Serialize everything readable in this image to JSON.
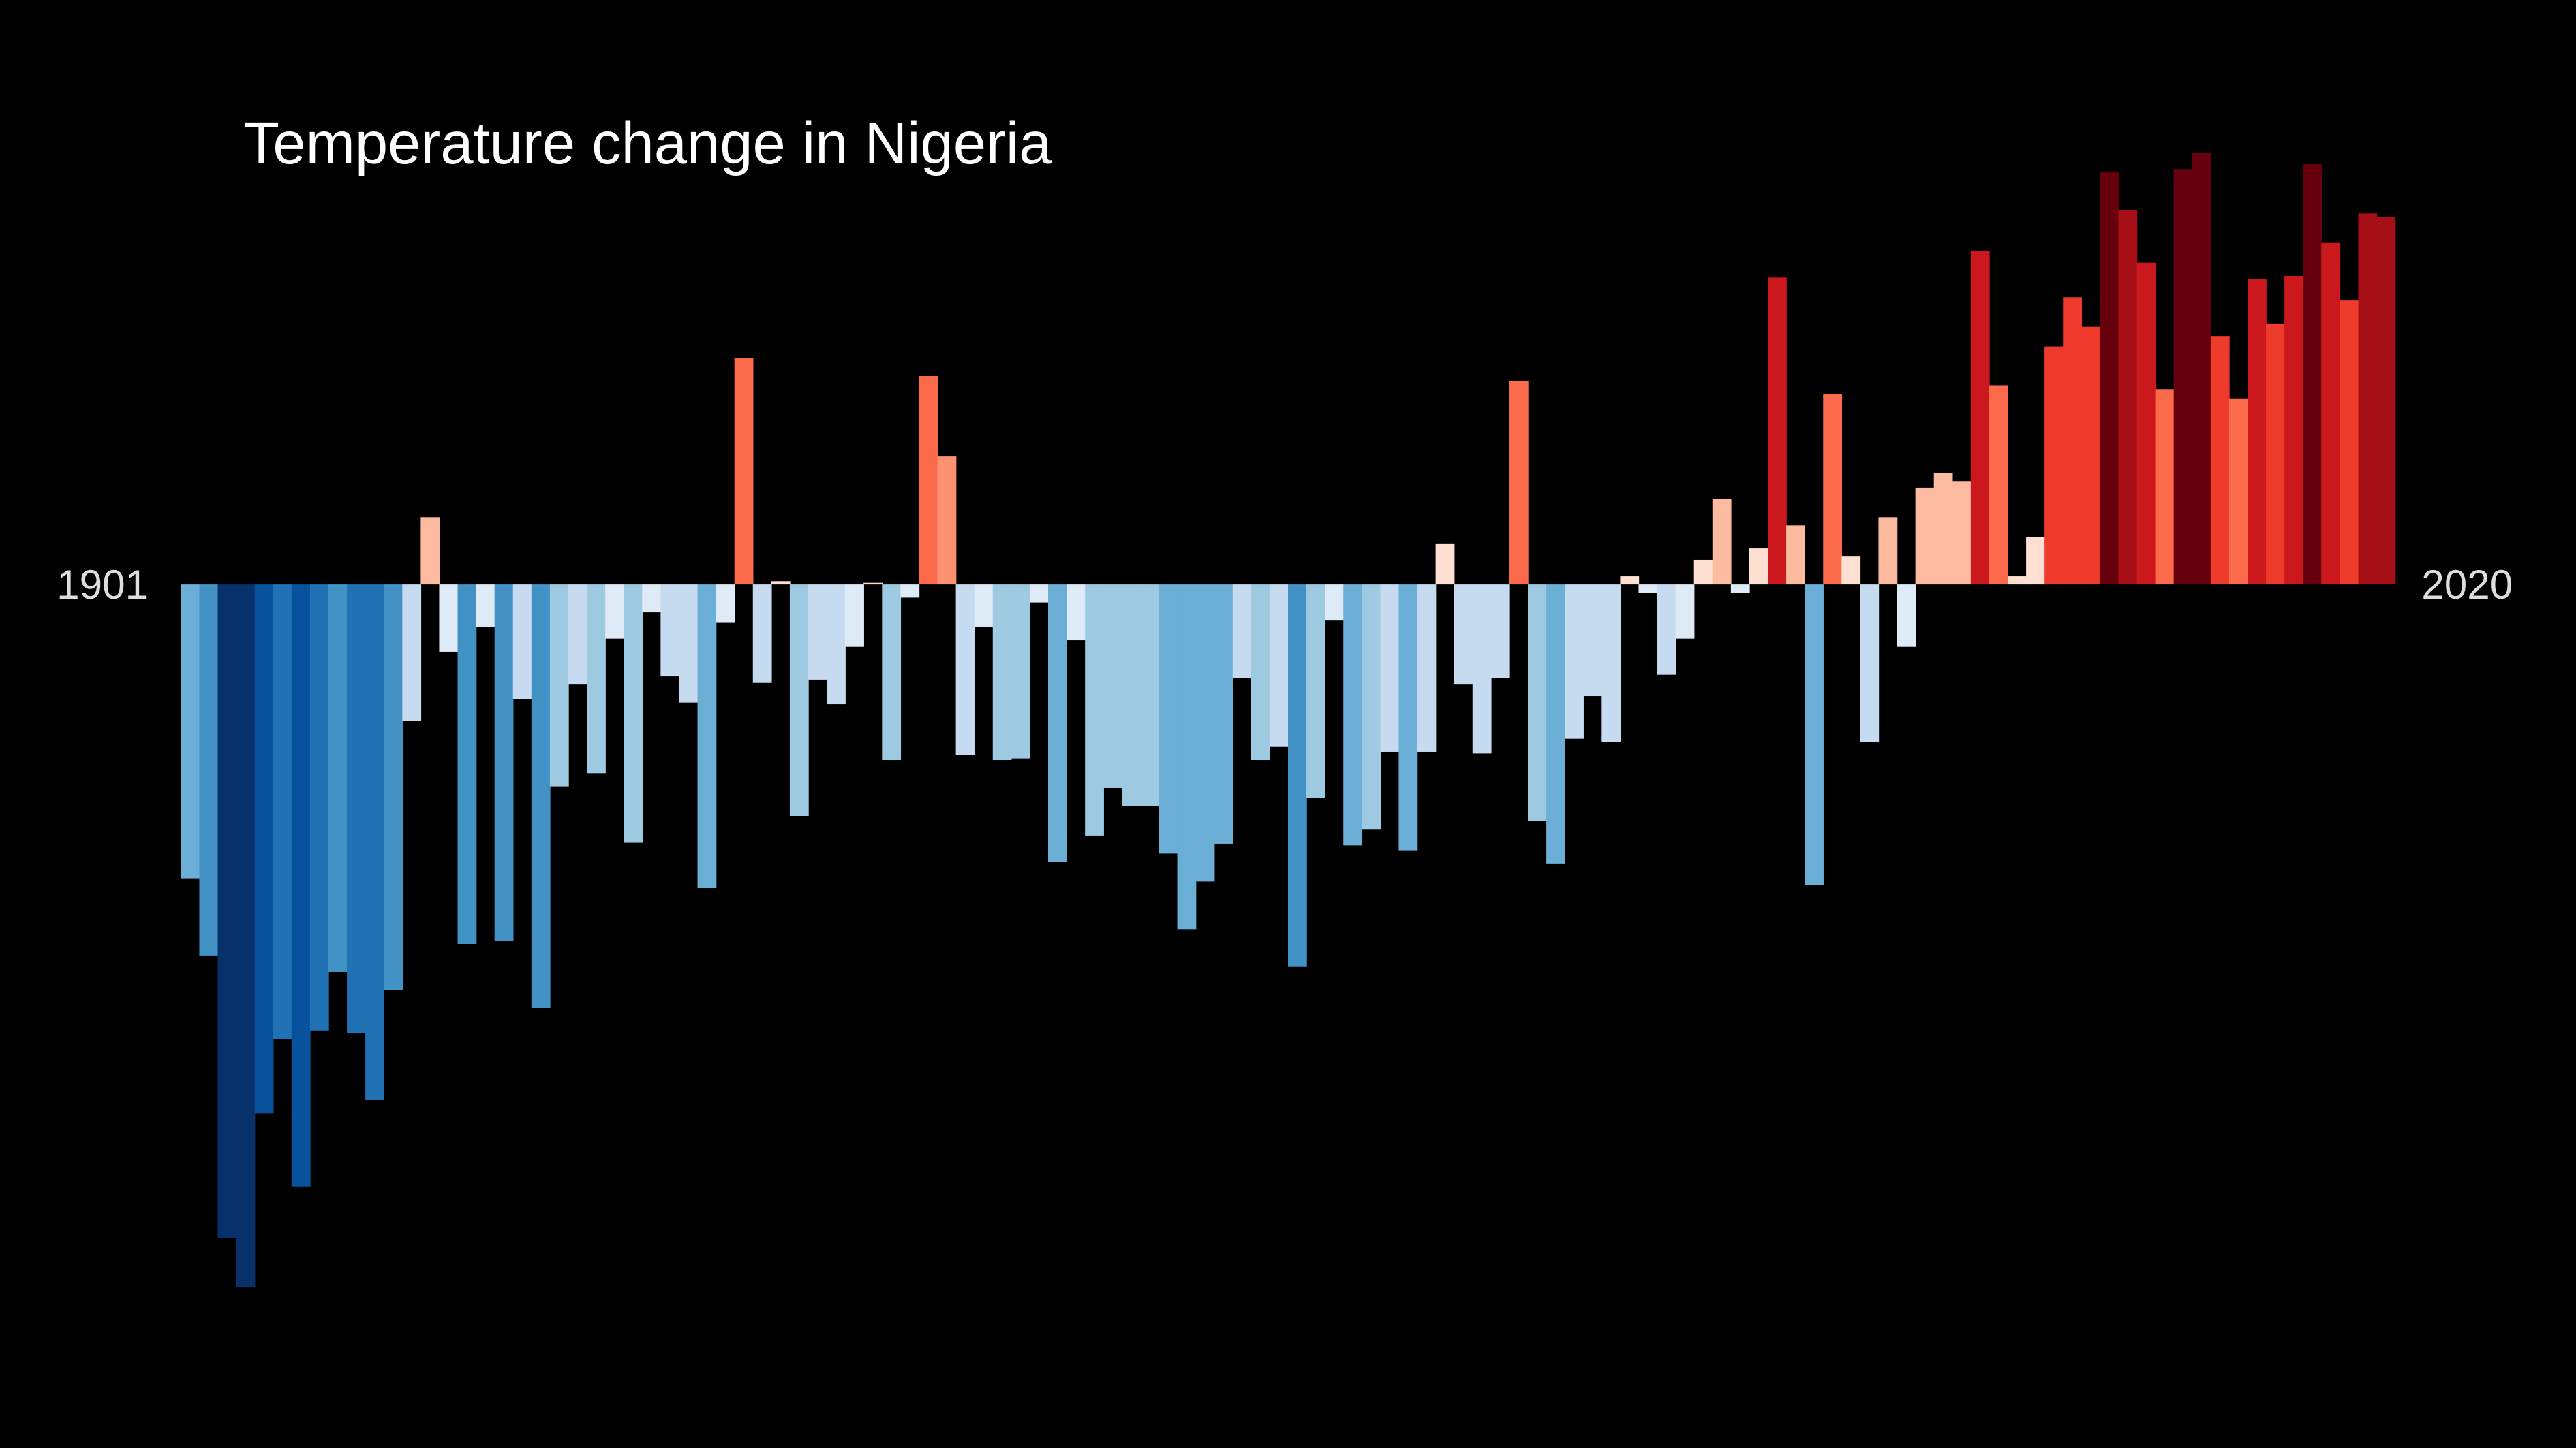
{
  "chart_data": {
    "type": "bar",
    "title": "Temperature change in Nigeria",
    "x": [
      1901,
      1902,
      1903,
      1904,
      1905,
      1906,
      1907,
      1908,
      1909,
      1910,
      1911,
      1912,
      1913,
      1914,
      1915,
      1916,
      1917,
      1918,
      1919,
      1920,
      1921,
      1922,
      1923,
      1924,
      1925,
      1926,
      1927,
      1928,
      1929,
      1930,
      1931,
      1932,
      1933,
      1934,
      1935,
      1936,
      1937,
      1938,
      1939,
      1940,
      1941,
      1942,
      1943,
      1944,
      1945,
      1946,
      1947,
      1948,
      1949,
      1950,
      1951,
      1952,
      1953,
      1954,
      1955,
      1956,
      1957,
      1958,
      1959,
      1960,
      1961,
      1962,
      1963,
      1964,
      1965,
      1966,
      1967,
      1968,
      1969,
      1970,
      1971,
      1972,
      1973,
      1974,
      1975,
      1976,
      1977,
      1978,
      1979,
      1980,
      1981,
      1982,
      1983,
      1984,
      1985,
      1986,
      1987,
      1988,
      1989,
      1990,
      1991,
      1992,
      1993,
      1994,
      1995,
      1996,
      1997,
      1998,
      1999,
      2000,
      2001,
      2002,
      2003,
      2004,
      2005,
      2006,
      2007,
      2008,
      2009,
      2010,
      2011,
      2012,
      2013,
      2014,
      2015,
      2016,
      2017,
      2018,
      2019,
      2020
    ],
    "values": [
      -1.79,
      -2.26,
      -3.98,
      -4.28,
      -3.22,
      -2.77,
      -3.67,
      -2.72,
      -2.36,
      -2.73,
      -3.14,
      -2.47,
      -0.83,
      0.41,
      -0.41,
      -2.19,
      -0.26,
      -2.17,
      -0.7,
      -2.58,
      -1.23,
      -0.61,
      -1.15,
      -0.33,
      -1.57,
      -0.17,
      -0.56,
      -0.72,
      -1.85,
      -0.23,
      1.38,
      -0.6,
      0.02,
      -1.41,
      -0.58,
      -0.73,
      -0.38,
      0.01,
      -1.07,
      -0.08,
      1.27,
      0.78,
      -1.04,
      -0.26,
      -1.07,
      -1.06,
      -0.11,
      -1.69,
      -0.34,
      -1.53,
      -1.24,
      -1.35,
      -1.35,
      -1.64,
      -2.1,
      -1.81,
      -1.58,
      -0.57,
      -1.07,
      -0.99,
      -2.33,
      -1.3,
      -0.22,
      -1.59,
      -1.49,
      -1.02,
      -1.62,
      -1.02,
      0.25,
      -0.61,
      -1.03,
      -0.57,
      1.24,
      -1.44,
      -1.7,
      -0.94,
      -0.68,
      -0.96,
      0.05,
      -0.05,
      -0.55,
      -0.33,
      0.15,
      0.52,
      -0.05,
      0.22,
      1.87,
      0.36,
      -1.83,
      1.16,
      0.17,
      -0.96,
      0.41,
      -0.38,
      0.59,
      0.68,
      0.63,
      2.03,
      1.21,
      0.05,
      0.29,
      1.45,
      1.75,
      1.57,
      2.51,
      2.28,
      1.96,
      1.19,
      2.53,
      2.63,
      1.51,
      1.13,
      1.86,
      1.59,
      1.88,
      2.56,
      2.08,
      1.73,
      2.26,
      2.24
    ],
    "xlim": [
      1900.5,
      2020.5
    ],
    "ylim": [
      -5.26,
      3.56
    ],
    "colors": {
      "negative": [
        "#deebf7",
        "#c6dbef",
        "#9ecae1",
        "#6baed6",
        "#4292c6",
        "#2171b5",
        "#08519c",
        "#08306b"
      ],
      "positive": [
        "#fee0d2",
        "#fcbba1",
        "#fc9272",
        "#fb6a4a",
        "#ef3b2c",
        "#cb181d",
        "#a50f15",
        "#67000d"
      ]
    },
    "background": "#000000"
  }
}
